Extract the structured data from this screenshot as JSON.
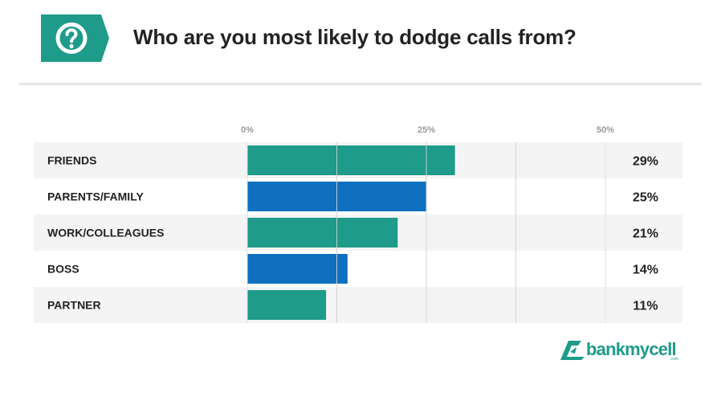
{
  "header": {
    "title": "Who are you most likely to dodge calls from?",
    "icon": "question-icon",
    "badge_color": "#1e9b8a"
  },
  "chart_data": {
    "type": "bar",
    "orientation": "horizontal",
    "title": "Who are you most likely to dodge calls from?",
    "categories": [
      "FRIENDS",
      "PARENTS/FAMILY",
      "WORK/COLLEAGUES",
      "BOSS",
      "PARTNER"
    ],
    "values": [
      29,
      25,
      21,
      14,
      11
    ],
    "value_labels": [
      "29%",
      "25%",
      "21%",
      "14%",
      "11%"
    ],
    "bar_colors": [
      "#1e9b8a",
      "#1070c0",
      "#1e9b8a",
      "#1070c0",
      "#1e9b8a"
    ],
    "x_ticks": [
      0,
      25,
      50
    ],
    "x_tick_labels": [
      "0%",
      "25%",
      "50%"
    ],
    "xlim": [
      0,
      50
    ],
    "grid": true,
    "row_background": [
      "#f4f4f4",
      "#ffffff"
    ]
  },
  "brand": {
    "logo_text": "bankmycell",
    "logo_sub": ".com",
    "logo_icon": "bankmycell-logo-icon"
  }
}
